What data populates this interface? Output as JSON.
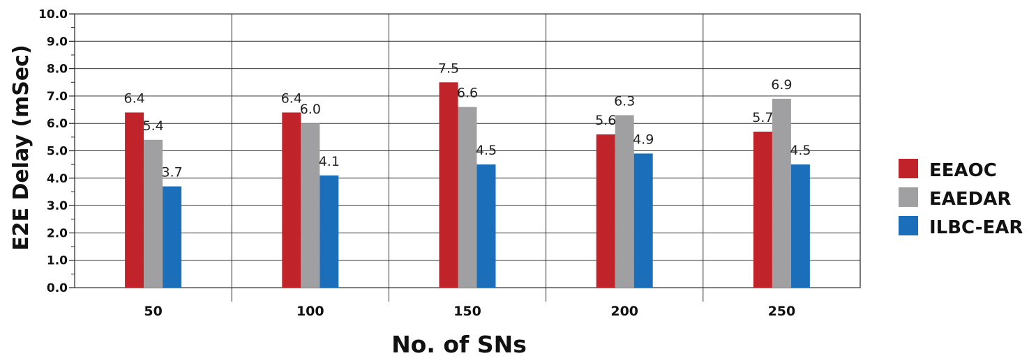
{
  "chart_data": {
    "type": "bar",
    "xlabel": "No. of SNs",
    "ylabel": "E2E Delay (mSec)",
    "ylim": [
      0,
      10
    ],
    "y_ticks": [
      "0.0",
      "1.0",
      "2.0",
      "3.0",
      "4.0",
      "5.0",
      "6.0",
      "7.0",
      "8.0",
      "9.0",
      "10.0"
    ],
    "categories": [
      "50",
      "100",
      "150",
      "200",
      "250"
    ],
    "grid": true,
    "legend_position": "right",
    "series": [
      {
        "name": "EEAOC",
        "color": "#c1232a",
        "values": [
          6.4,
          6.4,
          7.5,
          5.6,
          5.7
        ]
      },
      {
        "name": "EAEDAR",
        "color": "#a0a0a3",
        "values": [
          5.4,
          6.0,
          6.6,
          6.3,
          6.9
        ]
      },
      {
        "name": "ILBC-EAR",
        "color": "#1b6fba",
        "values": [
          3.7,
          4.1,
          4.5,
          4.9,
          4.5
        ]
      }
    ],
    "data_labels": [
      [
        "6.4",
        "6.4",
        "7.5",
        "5.6",
        "5.7"
      ],
      [
        "5.4",
        "6.0",
        "6.6",
        "6.3",
        "6.9"
      ],
      [
        "3.7",
        "4.1",
        "4.5",
        "4.9",
        "4.5"
      ]
    ]
  }
}
